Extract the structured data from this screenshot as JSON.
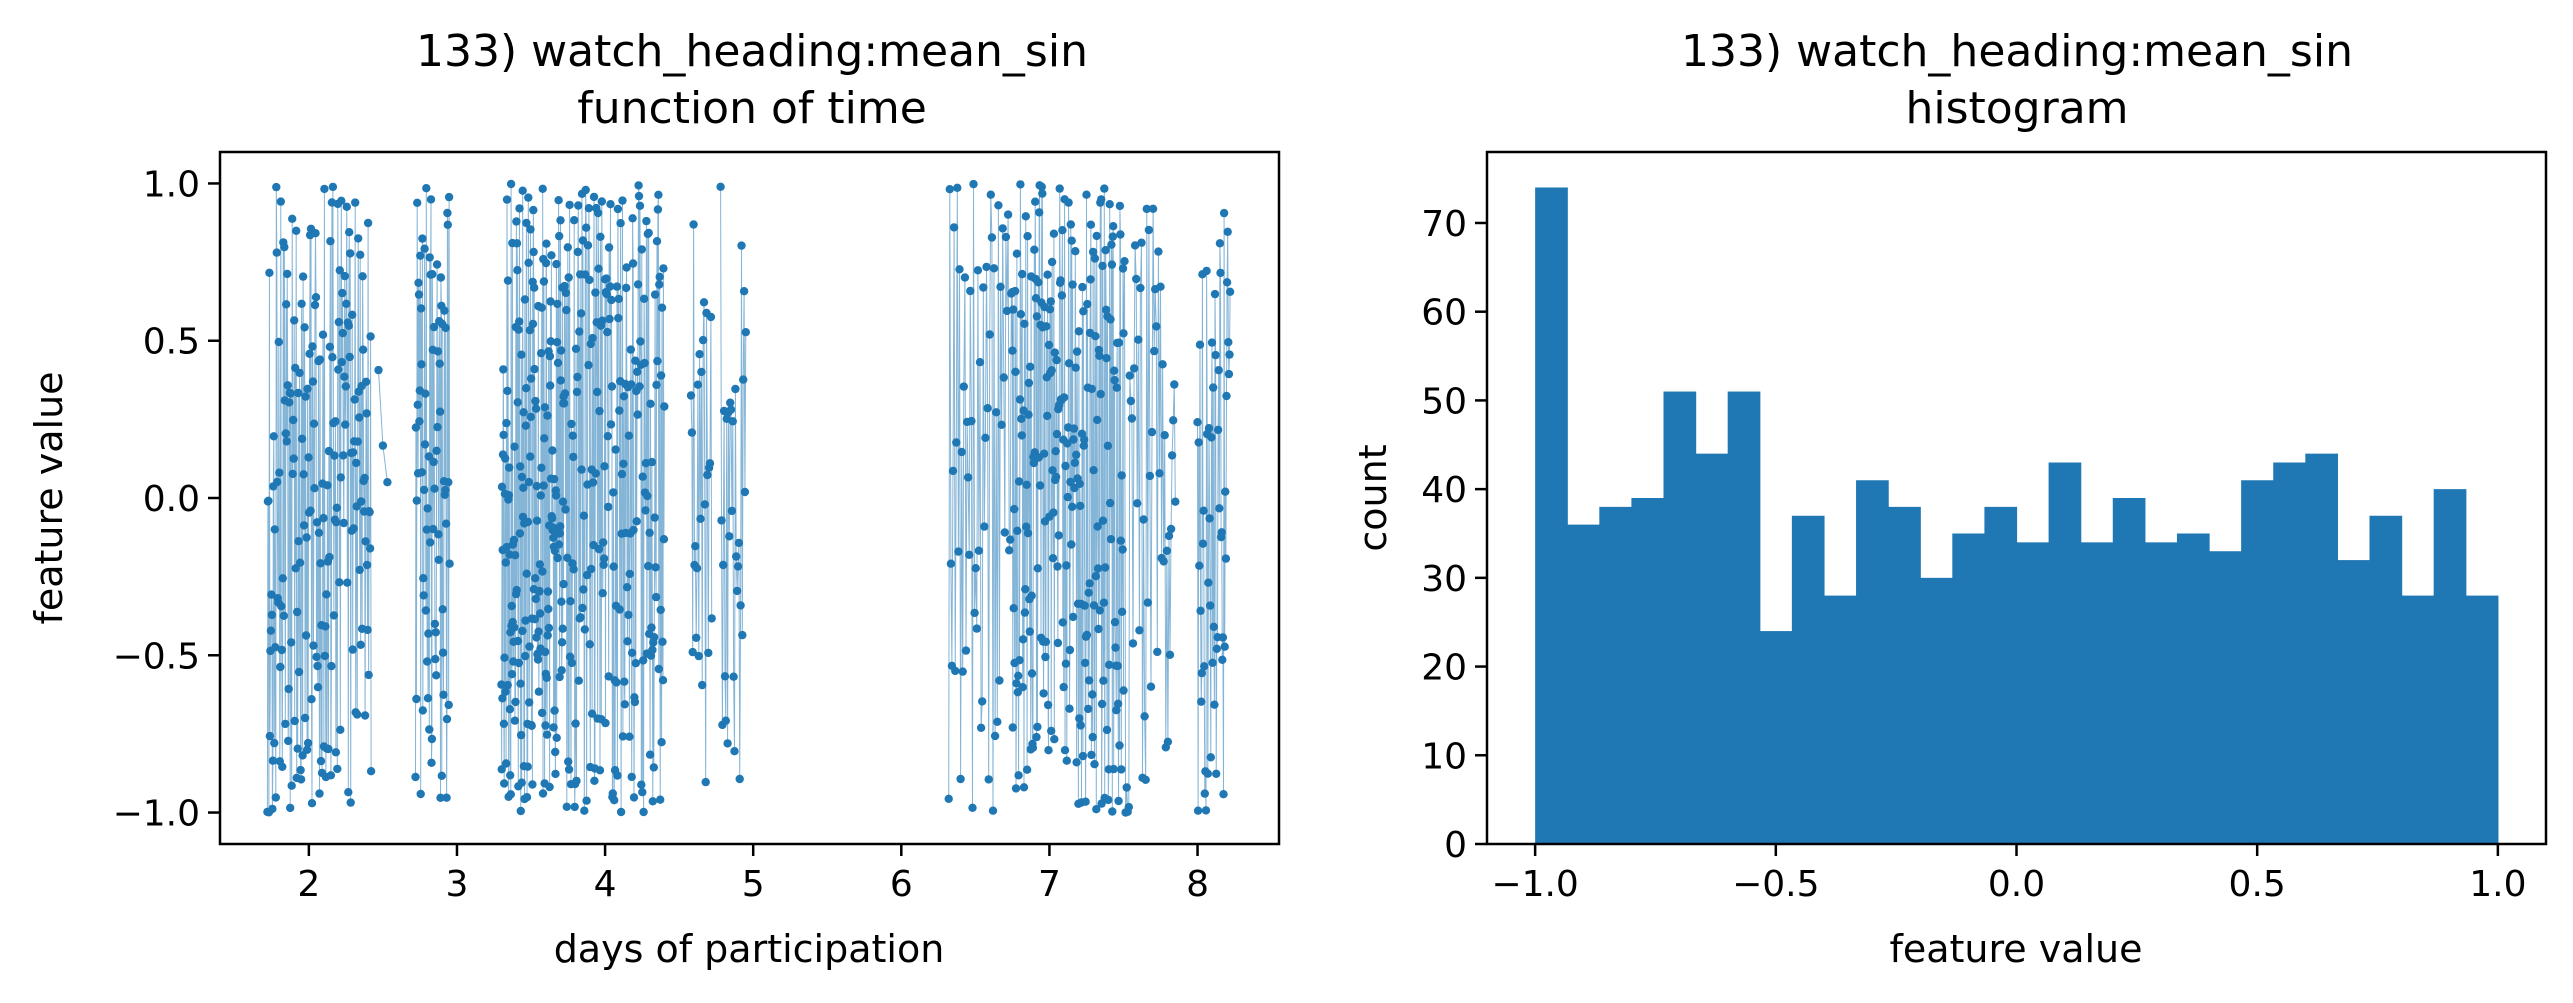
{
  "chart_data": [
    {
      "type": "line",
      "title": "133) watch_heading:mean_sin",
      "subtitle": "function of time",
      "xlabel": "days of participation",
      "ylabel": "feature value",
      "xlim": [
        1.4,
        8.55
      ],
      "ylim": [
        -1.1,
        1.1
      ],
      "xticks": [
        2,
        3,
        4,
        5,
        6,
        7,
        8
      ],
      "xtick_labels": [
        "2",
        "3",
        "4",
        "5",
        "6",
        "7",
        "8"
      ],
      "yticks": [
        1.0,
        0.5,
        0.0,
        -0.5,
        -1.0
      ],
      "ytick_labels": [
        "1.0",
        "0.5",
        "0.0",
        "−0.5",
        "−1.0"
      ],
      "grid": false,
      "series": [
        {
          "color": "#1f77b4",
          "clusters": [
            {
              "x_start": 1.72,
              "x_end": 2.42,
              "n": 210
            },
            {
              "x_start": 2.47,
              "x_end": 2.53,
              "n": 3
            },
            {
              "x_start": 2.72,
              "x_end": 2.95,
              "n": 80
            },
            {
              "x_start": 3.3,
              "x_end": 3.72,
              "n": 200
            },
            {
              "x_start": 3.72,
              "x_end": 4.4,
              "n": 220
            },
            {
              "x_start": 4.58,
              "x_end": 4.72,
              "n": 25
            },
            {
              "x_start": 4.78,
              "x_end": 4.95,
              "n": 30
            },
            {
              "x_start": 6.32,
              "x_end": 6.75,
              "n": 60
            },
            {
              "x_start": 6.75,
              "x_end": 7.5,
              "n": 250
            },
            {
              "x_start": 7.5,
              "x_end": 7.85,
              "n": 50
            },
            {
              "x_start": 8.0,
              "x_end": 8.22,
              "n": 55
            }
          ],
          "y_range": [
            -1.0,
            1.0
          ]
        }
      ]
    },
    {
      "type": "bar",
      "title": "133) watch_heading:mean_sin",
      "subtitle": "histogram",
      "xlabel": "feature value",
      "ylabel": "count",
      "xlim": [
        -1.1,
        1.1
      ],
      "ylim": [
        0,
        78
      ],
      "xticks": [
        -1.0,
        -0.5,
        0.0,
        0.5,
        1.0
      ],
      "xtick_labels": [
        "−1.0",
        "−0.5",
        "0.0",
        "0.5",
        "1.0"
      ],
      "yticks": [
        0,
        10,
        20,
        30,
        40,
        50,
        60,
        70
      ],
      "ytick_labels": [
        "0",
        "10",
        "20",
        "30",
        "40",
        "50",
        "60",
        "70"
      ],
      "grid": false,
      "bin_start": -1.0,
      "bin_end": 1.0,
      "values": [
        74,
        36,
        38,
        39,
        51,
        44,
        51,
        24,
        37,
        28,
        41,
        38,
        30,
        35,
        38,
        34,
        43,
        34,
        39,
        34,
        35,
        33,
        41,
        43,
        44,
        32,
        37,
        28,
        40,
        28
      ],
      "color": "#1f77b4"
    }
  ]
}
